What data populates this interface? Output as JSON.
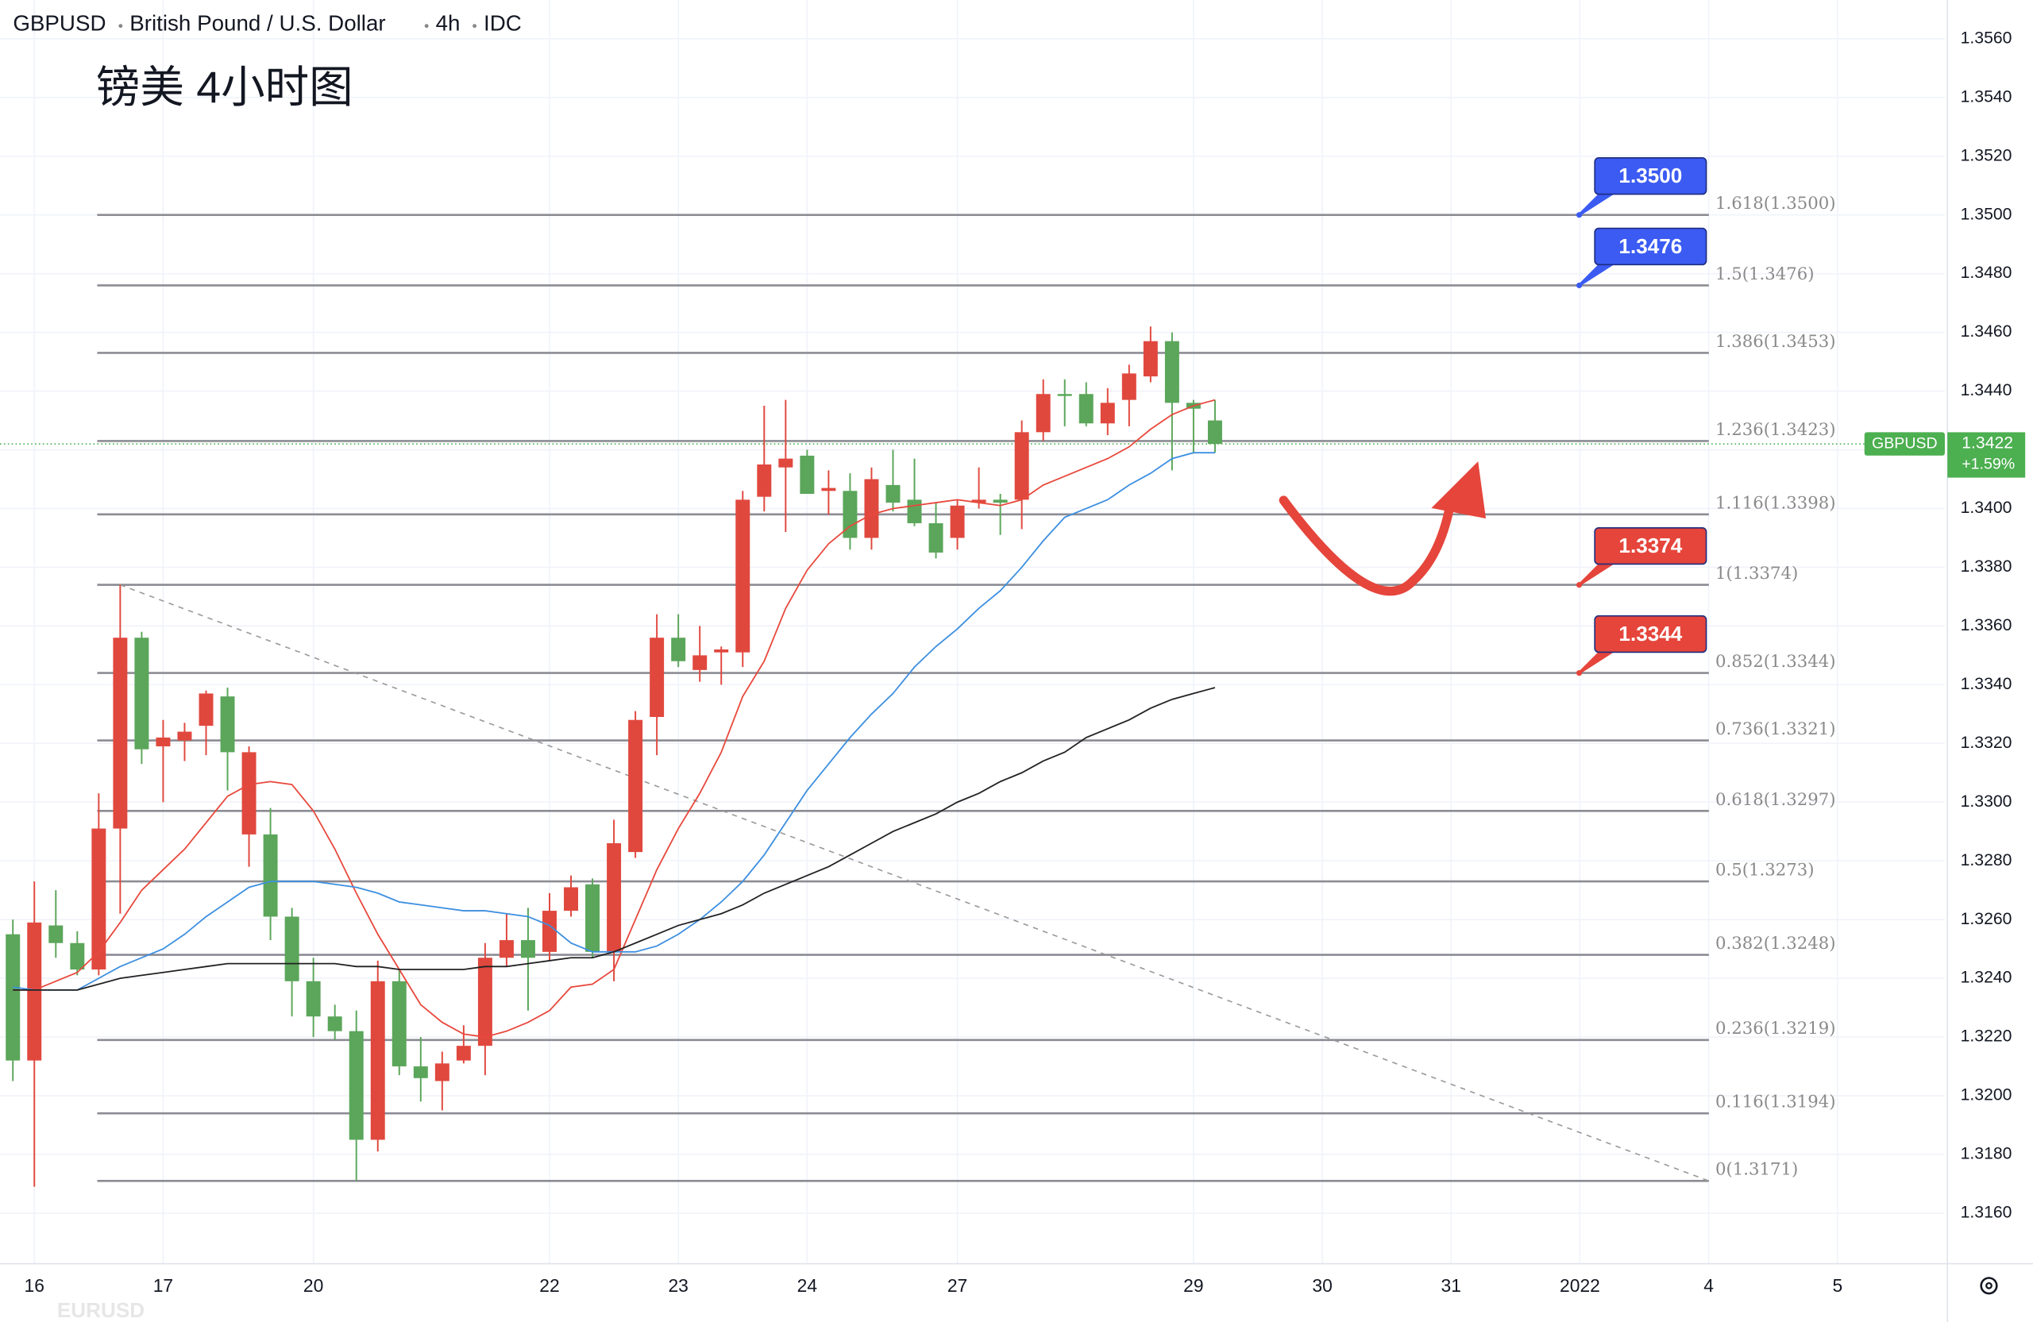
{
  "chart_data": {
    "type": "candlestick",
    "symbol": "GBPUSD",
    "description": "British Pound / U.S. Dollar",
    "interval": "4h",
    "source": "IDC",
    "annotation": "镑美 4小时图",
    "watermark": "EURUSD",
    "up_color": "#5ba65a",
    "down_color": "#e0483e",
    "x": [
      0,
      1,
      2,
      3,
      4,
      5,
      6,
      7,
      8,
      9,
      10,
      11,
      12,
      13,
      14,
      15,
      16,
      17,
      18,
      19,
      20,
      21,
      22,
      23,
      24,
      25,
      26,
      27,
      28,
      29,
      30,
      31,
      32,
      33,
      34,
      35,
      36,
      37,
      38,
      39,
      40,
      41,
      42,
      43,
      44,
      45,
      46,
      47,
      48,
      49,
      50,
      51,
      52,
      53,
      54,
      55,
      56
    ],
    "open": [
      1.3212,
      1.3259,
      1.3252,
      1.3243,
      1.3291,
      1.3356,
      1.3318,
      1.3322,
      1.3324,
      1.3337,
      1.3317,
      1.3317,
      1.3261,
      1.3239,
      1.3227,
      1.3222,
      1.3185,
      1.3239,
      1.321,
      1.3206,
      1.3211,
      1.3217,
      1.3247,
      1.3253,
      1.3247,
      1.3263,
      1.3271,
      1.3249,
      1.3286,
      1.3328,
      1.3356,
      1.3348,
      1.335,
      1.3352,
      1.3403,
      1.3415,
      1.3417,
      1.3405,
      1.3407,
      1.339,
      1.341,
      1.3402,
      1.3395,
      1.3385,
      1.3401,
      1.3403,
      1.3402,
      1.3426,
      1.3439,
      1.3439,
      1.3429,
      1.3436,
      1.3446,
      1.3457,
      1.3436,
      1.3434,
      1.3422
    ],
    "high": [
      1.326,
      1.3273,
      1.327,
      1.3256,
      1.3303,
      1.3374,
      1.3358,
      1.3328,
      1.3327,
      1.3338,
      1.3339,
      1.3319,
      1.3298,
      1.3264,
      1.3247,
      1.3231,
      1.3229,
      1.3246,
      1.3243,
      1.322,
      1.3215,
      1.3224,
      1.3252,
      1.3262,
      1.3264,
      1.3269,
      1.3275,
      1.3274,
      1.3294,
      1.3331,
      1.3364,
      1.3364,
      1.336,
      1.3353,
      1.3406,
      1.3435,
      1.3437,
      1.342,
      1.3413,
      1.3412,
      1.3414,
      1.342,
      1.3417,
      1.3402,
      1.3403,
      1.3414,
      1.3405,
      1.343,
      1.3444,
      1.3444,
      1.3443,
      1.3441,
      1.3449,
      1.3462,
      1.346,
      1.3437,
      1.3437
    ],
    "low": [
      1.3205,
      1.3169,
      1.3247,
      1.3241,
      1.3241,
      1.3262,
      1.3313,
      1.33,
      1.3314,
      1.3316,
      1.3304,
      1.3278,
      1.3253,
      1.3227,
      1.322,
      1.3219,
      1.3171,
      1.3181,
      1.3207,
      1.3198,
      1.3195,
      1.3211,
      1.3207,
      1.3244,
      1.3229,
      1.3246,
      1.3261,
      1.3247,
      1.3239,
      1.3281,
      1.3316,
      1.3346,
      1.3341,
      1.334,
      1.3346,
      1.3399,
      1.3392,
      1.3405,
      1.3398,
      1.3386,
      1.3386,
      1.3399,
      1.3394,
      1.3383,
      1.3386,
      1.34,
      1.3391,
      1.3393,
      1.3423,
      1.3428,
      1.3428,
      1.3425,
      1.3428,
      1.3443,
      1.3413,
      1.3419,
      1.3419
    ],
    "close": [
      1.3255,
      1.3212,
      1.3258,
      1.3252,
      1.3243,
      1.3291,
      1.3356,
      1.3319,
      1.3321,
      1.3326,
      1.3336,
      1.3289,
      1.3289,
      1.3261,
      1.3239,
      1.3227,
      1.3222,
      1.3185,
      1.3239,
      1.321,
      1.3205,
      1.3212,
      1.3217,
      1.3247,
      1.3253,
      1.3249,
      1.3263,
      1.3272,
      1.3249,
      1.3283,
      1.3329,
      1.3356,
      1.3345,
      1.3351,
      1.3351,
      1.3404,
      1.3414,
      1.3418,
      1.3406,
      1.3406,
      1.339,
      1.3408,
      1.3403,
      1.3395,
      1.339,
      1.3402,
      1.3403,
      1.3403,
      1.3426,
      1.3439,
      1.3439,
      1.3429,
      1.3437,
      1.3445,
      1.3457,
      1.3436,
      1.343
    ],
    "moving_averages": [
      {
        "color": "#e8483c",
        "values": [
          1.3236,
          1.3236,
          1.3239,
          1.3242,
          1.3249,
          1.3259,
          1.327,
          1.3277,
          1.3284,
          1.3293,
          1.3302,
          1.3306,
          1.3307,
          1.3306,
          1.3297,
          1.3284,
          1.3269,
          1.3255,
          1.3243,
          1.3231,
          1.3225,
          1.3221,
          1.322,
          1.3222,
          1.3225,
          1.3229,
          1.3237,
          1.3238,
          1.3243,
          1.326,
          1.3277,
          1.3291,
          1.3303,
          1.3317,
          1.3336,
          1.3348,
          1.3366,
          1.3379,
          1.3388,
          1.3394,
          1.3398,
          1.34,
          1.3401,
          1.3402,
          1.3403,
          1.3402,
          1.3401,
          1.3403,
          1.3408,
          1.3411,
          1.3414,
          1.3417,
          1.3421,
          1.3427,
          1.3432,
          1.3435,
          1.3437
        ]
      },
      {
        "color": "#3d8fe0",
        "values": [
          1.3237,
          1.3236,
          1.3236,
          1.3236,
          1.324,
          1.3244,
          1.3247,
          1.325,
          1.3255,
          1.3261,
          1.3266,
          1.3271,
          1.3273,
          1.3273,
          1.3273,
          1.3272,
          1.3271,
          1.3269,
          1.3266,
          1.3265,
          1.3264,
          1.3263,
          1.3263,
          1.3262,
          1.3261,
          1.3258,
          1.3252,
          1.3249,
          1.3249,
          1.3249,
          1.3251,
          1.3255,
          1.326,
          1.3266,
          1.3273,
          1.3282,
          1.3293,
          1.3304,
          1.3313,
          1.3322,
          1.333,
          1.3337,
          1.3346,
          1.3353,
          1.3359,
          1.3366,
          1.3372,
          1.338,
          1.3389,
          1.3397,
          1.34,
          1.3403,
          1.3408,
          1.3412,
          1.3417,
          1.3419,
          1.3419
        ]
      },
      {
        "color": "#222222",
        "values": [
          1.3236,
          1.3236,
          1.3236,
          1.3236,
          1.3238,
          1.324,
          1.3241,
          1.3242,
          1.3243,
          1.3244,
          1.3245,
          1.3245,
          1.3245,
          1.3245,
          1.3245,
          1.3245,
          1.3244,
          1.3244,
          1.3243,
          1.3243,
          1.3243,
          1.3243,
          1.3244,
          1.3244,
          1.3245,
          1.3246,
          1.3247,
          1.3247,
          1.3249,
          1.3252,
          1.3255,
          1.3258,
          1.326,
          1.3262,
          1.3265,
          1.3269,
          1.3272,
          1.3275,
          1.3278,
          1.3282,
          1.3286,
          1.329,
          1.3293,
          1.3296,
          1.33,
          1.3303,
          1.3307,
          1.331,
          1.3314,
          1.3317,
          1.3322,
          1.3325,
          1.3328,
          1.3332,
          1.3335,
          1.3337,
          1.3339
        ]
      }
    ],
    "fib_levels": [
      {
        "value": 1.35,
        "label": "1.618(1.3500)"
      },
      {
        "value": 1.3476,
        "label": "1.5(1.3476)"
      },
      {
        "value": 1.3453,
        "label": "1.386(1.3453)"
      },
      {
        "value": 1.3423,
        "label": "1.236(1.3423)"
      },
      {
        "value": 1.3398,
        "label": "1.116(1.3398)"
      },
      {
        "value": 1.3374,
        "label": "1(1.3374)"
      },
      {
        "value": 1.3344,
        "label": "0.852(1.3344)"
      },
      {
        "value": 1.3321,
        "label": "0.736(1.3321)"
      },
      {
        "value": 1.3297,
        "label": "0.618(1.3297)"
      },
      {
        "value": 1.3273,
        "label": "0.5(1.3273)"
      },
      {
        "value": 1.3248,
        "label": "0.382(1.3248)"
      },
      {
        "value": 1.3219,
        "label": "0.236(1.3219)"
      },
      {
        "value": 1.3194,
        "label": "0.116(1.3194)"
      },
      {
        "value": 1.3171,
        "label": "0(1.3171)"
      }
    ],
    "callouts": [
      {
        "value": 1.35,
        "label": "1.3500",
        "color": "#3b5bf2"
      },
      {
        "value": 1.3476,
        "label": "1.3476",
        "color": "#3b5bf2"
      },
      {
        "value": 1.3374,
        "label": "1.3374",
        "color": "#e5453b"
      },
      {
        "value": 1.3344,
        "label": "1.3344",
        "color": "#e5453b"
      }
    ],
    "trendline": {
      "x": [
        5,
        79
      ],
      "values": [
        1.3374,
        1.3171
      ]
    },
    "last_price": {
      "value": 1.3422,
      "label": "1.3422",
      "color": "#4caf50"
    },
    "change": {
      "value": 1.59,
      "label": "+1.59%"
    },
    "xlim": [
      -0.6,
      90.0
    ],
    "xticks": [
      {
        "value": 1,
        "label": "16"
      },
      {
        "value": 7,
        "label": "17"
      },
      {
        "value": 14,
        "label": "20"
      },
      {
        "value": 25,
        "label": "22"
      },
      {
        "value": 31,
        "label": "23"
      },
      {
        "value": 37,
        "label": "24"
      },
      {
        "value": 44,
        "label": "27"
      },
      {
        "value": 55,
        "label": "29"
      },
      {
        "value": 61,
        "label": "30"
      },
      {
        "value": 67,
        "label": "31"
      },
      {
        "value": 73,
        "label": "2022"
      },
      {
        "value": 79,
        "label": "4"
      },
      {
        "value": 85,
        "label": "5"
      }
    ],
    "ylim": [
      1.31428,
      1.35732
    ],
    "yticks": [
      {
        "value": 1.316,
        "label": "1.3160"
      },
      {
        "value": 1.318,
        "label": "1.3180"
      },
      {
        "value": 1.32,
        "label": "1.3200"
      },
      {
        "value": 1.322,
        "label": "1.3220"
      },
      {
        "value": 1.324,
        "label": "1.3240"
      },
      {
        "value": 1.326,
        "label": "1.3260"
      },
      {
        "value": 1.328,
        "label": "1.3280"
      },
      {
        "value": 1.33,
        "label": "1.3300"
      },
      {
        "value": 1.332,
        "label": "1.3320"
      },
      {
        "value": 1.334,
        "label": "1.3340"
      },
      {
        "value": 1.336,
        "label": "1.3360"
      },
      {
        "value": 1.338,
        "label": "1.3380"
      },
      {
        "value": 1.34,
        "label": "1.3400"
      },
      {
        "value": 1.342,
        "label": "1.3420"
      },
      {
        "value": 1.344,
        "label": "1.3440"
      },
      {
        "value": 1.346,
        "label": "1.3460"
      },
      {
        "value": 1.348,
        "label": "1.3480"
      },
      {
        "value": 1.35,
        "label": "1.3500"
      },
      {
        "value": 1.352,
        "label": "1.3520"
      },
      {
        "value": 1.354,
        "label": "1.3540"
      },
      {
        "value": 1.356,
        "label": "1.3560"
      }
    ],
    "grid": true
  }
}
